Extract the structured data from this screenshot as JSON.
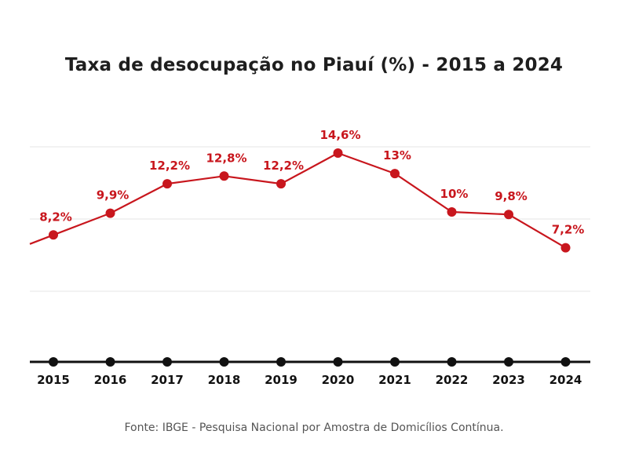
{
  "title": "Taxa de desocupação no Piauí (%) - 2015 a 2024",
  "source": "Fonte: IBGE - Pesquisa Nacional por Amostra de Domicílios Contínua.",
  "colors": {
    "line": "#c8161d",
    "axis": "#111111",
    "grid": "#e6e6e6",
    "label": "#c8161d",
    "tick": "#111111"
  },
  "chart_data": {
    "type": "line",
    "categories": [
      "2015",
      "2016",
      "2017",
      "2018",
      "2019",
      "2020",
      "2021",
      "2022",
      "2023",
      "2024"
    ],
    "series": [
      {
        "values": [
          8.2,
          9.9,
          12.2,
          12.8,
          12.2,
          14.6,
          13.0,
          10.0,
          9.8,
          7.2
        ],
        "labels": [
          "8,2%",
          "9,9%",
          "12,2%",
          "12,8%",
          "12,2%",
          "14,6%",
          "13%",
          "10%",
          "9,8%",
          "7,2%"
        ]
      }
    ],
    "xlabel": "",
    "ylabel": "",
    "grid": true,
    "legend": "none"
  }
}
